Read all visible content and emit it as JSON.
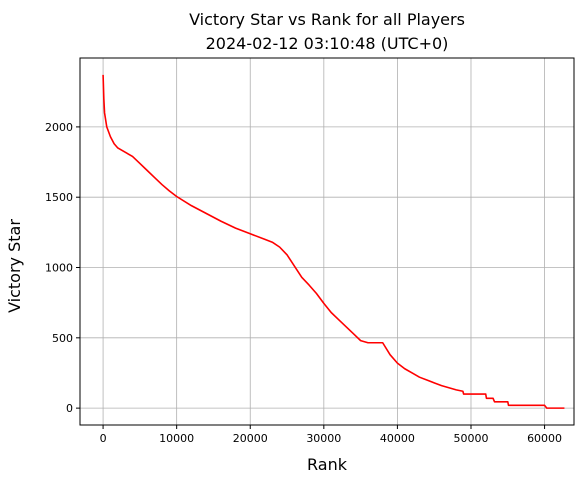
{
  "chart_data": {
    "type": "line",
    "title_lines": [
      "Victory Star vs Rank for all Players",
      "2024-02-12 03:10:48 (UTC+0)"
    ],
    "xlabel": "Rank",
    "ylabel": "Victory Star",
    "xlim": [
      -3137,
      64000
    ],
    "ylim": [
      -120,
      2490
    ],
    "x_ticks": [
      0,
      10000,
      20000,
      30000,
      40000,
      50000,
      60000
    ],
    "x_tick_labels": [
      "0",
      "10000",
      "20000",
      "30000",
      "40000",
      "50000",
      "60000"
    ],
    "y_ticks": [
      0,
      500,
      1000,
      1500,
      2000
    ],
    "y_tick_labels": [
      "0",
      "500",
      "1000",
      "1500",
      "2000"
    ],
    "grid": true,
    "legend": "none",
    "series": [
      {
        "color": "#ff0000",
        "x": [
          0,
          100,
          200,
          500,
          1000,
          1500,
          2000,
          3000,
          4000,
          5000,
          6000,
          7000,
          8000,
          9000,
          10000,
          12000,
          14000,
          16000,
          18000,
          20000,
          22000,
          23000,
          24000,
          25000,
          26000,
          27000,
          28000,
          29000,
          30000,
          31000,
          32000,
          33000,
          34000,
          35000,
          36000,
          37000,
          38000,
          39000,
          40000,
          41000,
          42000,
          43000,
          44000,
          45000,
          46000,
          47000,
          48000,
          48900,
          49000,
          50000,
          51000,
          52000,
          52100,
          53000,
          53200,
          55000,
          55100,
          56000,
          56200,
          58000,
          60000,
          60300,
          61000,
          62700
        ],
        "y": [
          2370,
          2200,
          2100,
          2000,
          1930,
          1880,
          1850,
          1820,
          1790,
          1740,
          1690,
          1640,
          1590,
          1545,
          1505,
          1440,
          1385,
          1330,
          1280,
          1240,
          1200,
          1180,
          1145,
          1090,
          1010,
          930,
          875,
          815,
          745,
          680,
          630,
          580,
          530,
          480,
          465,
          465,
          465,
          380,
          320,
          280,
          250,
          220,
          200,
          180,
          160,
          145,
          130,
          120,
          100,
          100,
          100,
          100,
          70,
          70,
          45,
          45,
          20,
          20,
          20,
          20,
          20,
          0,
          0,
          0
        ]
      }
    ]
  }
}
